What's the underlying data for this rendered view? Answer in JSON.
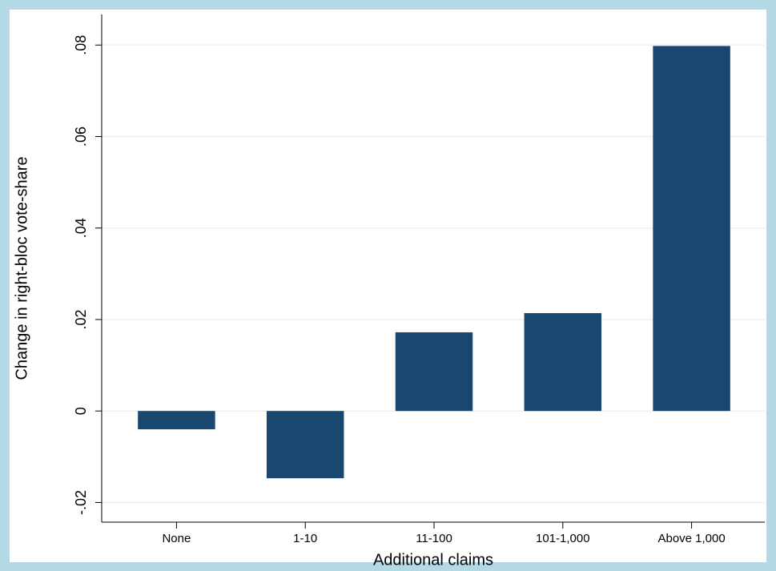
{
  "chart_data": {
    "type": "bar",
    "x_label": "Additional claims",
    "y_label": "Change in right-bloc vote-share",
    "categories": [
      "None",
      "1-10",
      "11-100",
      "101-1,000",
      "Above 1,000"
    ],
    "values": [
      -0.004,
      -0.0147,
      0.0172,
      0.0214,
      0.0798
    ],
    "color": "#1a476f",
    "ylim": [
      -0.0243,
      0.0867
    ],
    "yticks": [
      {
        "value": -0.02,
        "label": "-.02"
      },
      0,
      {
        "value": 0.02,
        "label": ".02"
      },
      {
        "value": 0.04,
        "label": ".04"
      },
      {
        "value": 0.06,
        "label": ".06"
      },
      {
        "value": 0.08,
        "label": ".08"
      }
    ],
    "grid": true
  }
}
